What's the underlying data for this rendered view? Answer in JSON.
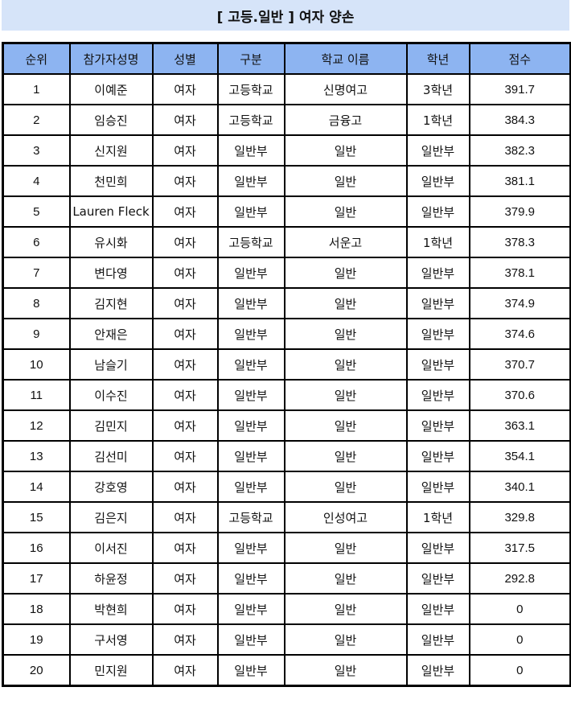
{
  "title": "[ 고등.일반 ] 여자 양손",
  "colors": {
    "banner": "#d6e4f9",
    "header": "#8db4f1"
  },
  "table": {
    "headers": [
      "순위",
      "참가자성명",
      "성별",
      "구분",
      "학교 이름",
      "학년",
      "점수"
    ],
    "rows": [
      [
        "1",
        "이예준",
        "여자",
        "고등학교",
        "신명여고",
        "3학년",
        "391.7"
      ],
      [
        "2",
        "임승진",
        "여자",
        "고등학교",
        "금융고",
        "1학년",
        "384.3"
      ],
      [
        "3",
        "신지원",
        "여자",
        "일반부",
        "일반",
        "일반부",
        "382.3"
      ],
      [
        "4",
        "천민희",
        "여자",
        "일반부",
        "일반",
        "일반부",
        "381.1"
      ],
      [
        "5",
        "Lauren Fleck",
        "여자",
        "일반부",
        "일반",
        "일반부",
        "379.9"
      ],
      [
        "6",
        "유시화",
        "여자",
        "고등학교",
        "서운고",
        "1학년",
        "378.3"
      ],
      [
        "7",
        "변다영",
        "여자",
        "일반부",
        "일반",
        "일반부",
        "378.1"
      ],
      [
        "8",
        "김지현",
        "여자",
        "일반부",
        "일반",
        "일반부",
        "374.9"
      ],
      [
        "9",
        "안재은",
        "여자",
        "일반부",
        "일반",
        "일반부",
        "374.6"
      ],
      [
        "10",
        "남슬기",
        "여자",
        "일반부",
        "일반",
        "일반부",
        "370.7"
      ],
      [
        "11",
        "이수진",
        "여자",
        "일반부",
        "일반",
        "일반부",
        "370.6"
      ],
      [
        "12",
        "김민지",
        "여자",
        "일반부",
        "일반",
        "일반부",
        "363.1"
      ],
      [
        "13",
        "김선미",
        "여자",
        "일반부",
        "일반",
        "일반부",
        "354.1"
      ],
      [
        "14",
        "강호영",
        "여자",
        "일반부",
        "일반",
        "일반부",
        "340.1"
      ],
      [
        "15",
        "김은지",
        "여자",
        "고등학교",
        "인성여고",
        "1학년",
        "329.8"
      ],
      [
        "16",
        "이서진",
        "여자",
        "일반부",
        "일반",
        "일반부",
        "317.5"
      ],
      [
        "17",
        "하윤정",
        "여자",
        "일반부",
        "일반",
        "일반부",
        "292.8"
      ],
      [
        "18",
        "박현희",
        "여자",
        "일반부",
        "일반",
        "일반부",
        "0"
      ],
      [
        "19",
        "구서영",
        "여자",
        "일반부",
        "일반",
        "일반부",
        "0"
      ],
      [
        "20",
        "민지원",
        "여자",
        "일반부",
        "일반",
        "일반부",
        "0"
      ]
    ]
  }
}
